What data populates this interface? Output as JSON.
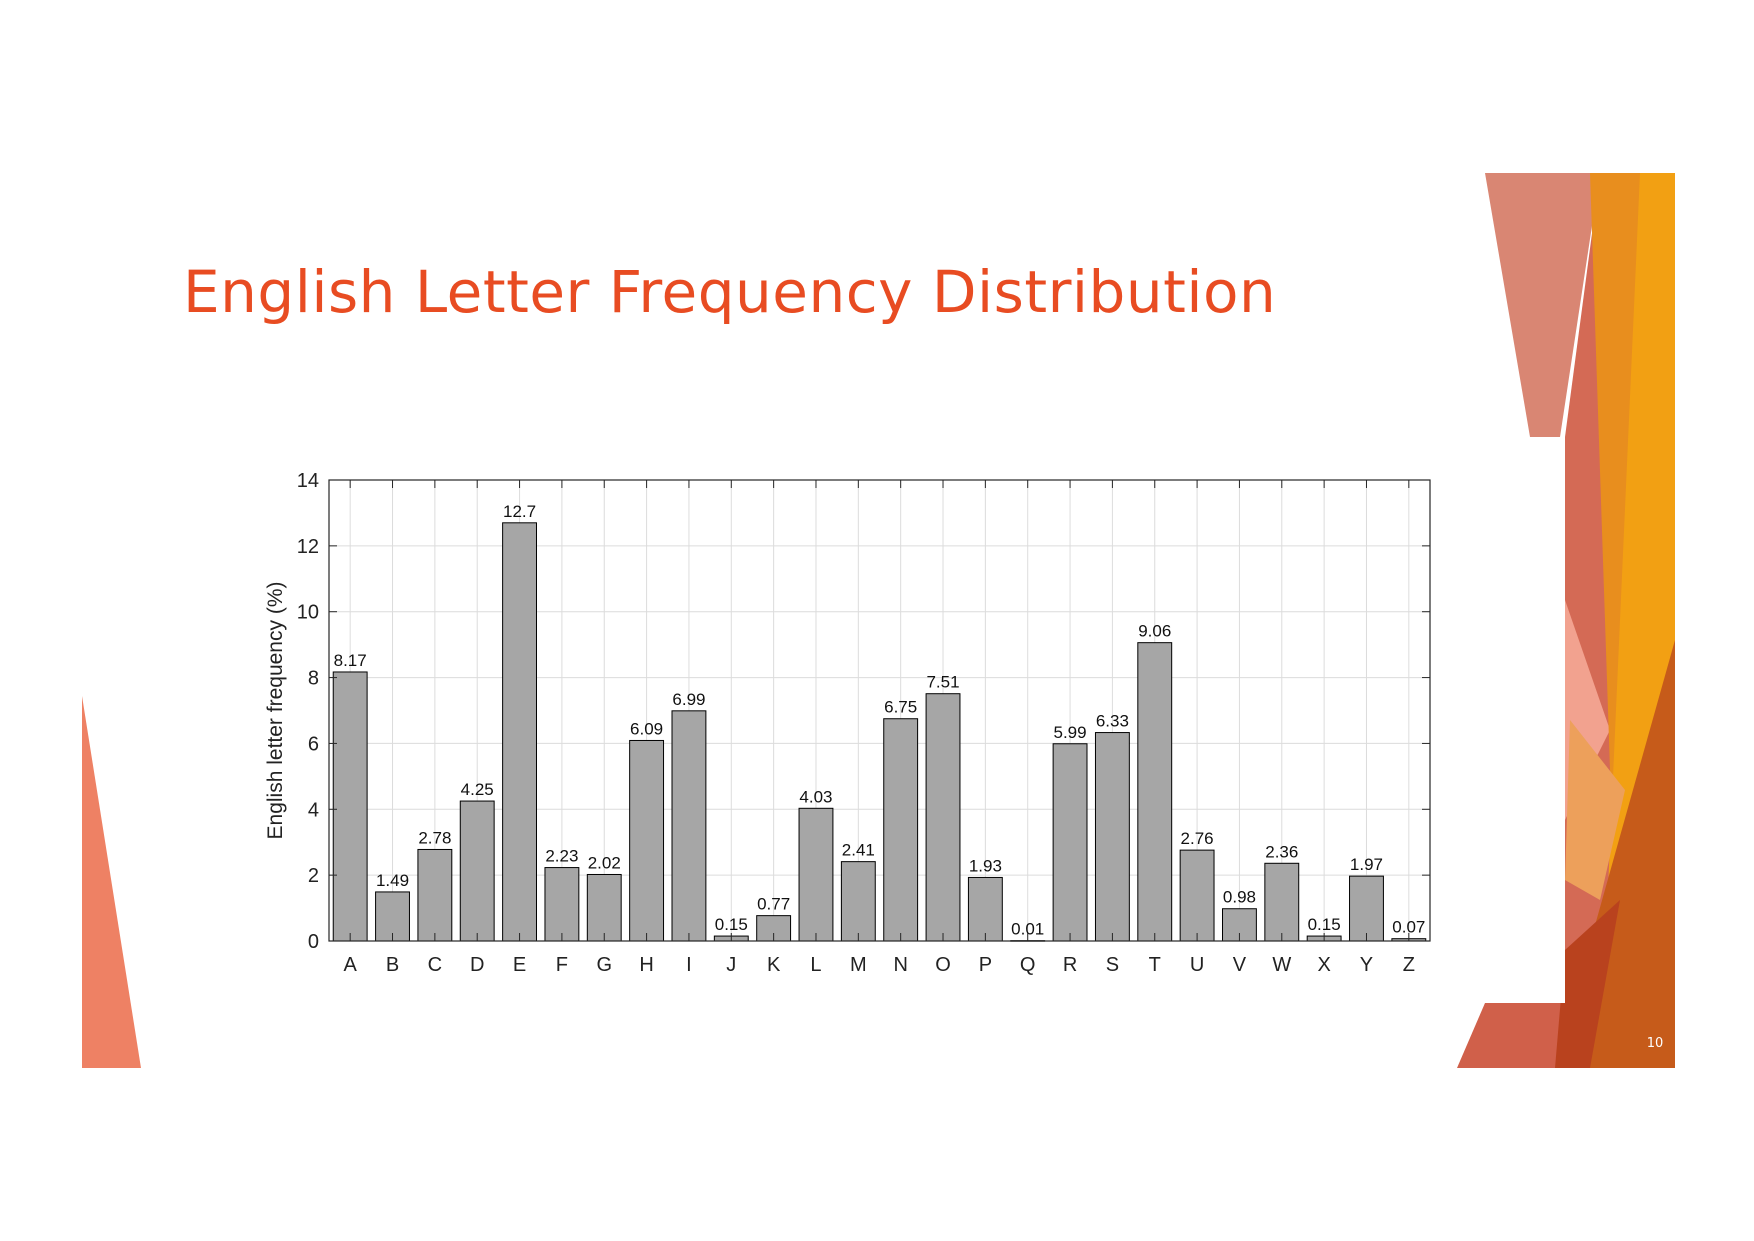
{
  "slide": {
    "title": "English Letter Frequency Distribution",
    "page_number": "10",
    "accent_color": "#E84C22"
  },
  "chart_data": {
    "type": "bar",
    "title": "",
    "xlabel": "",
    "ylabel": "English letter frequency (%)",
    "categories": [
      "A",
      "B",
      "C",
      "D",
      "E",
      "F",
      "G",
      "H",
      "I",
      "J",
      "K",
      "L",
      "M",
      "N",
      "O",
      "P",
      "Q",
      "R",
      "S",
      "T",
      "U",
      "V",
      "W",
      "X",
      "Y",
      "Z"
    ],
    "values": [
      8.17,
      1.49,
      2.78,
      4.25,
      12.7,
      2.23,
      2.02,
      6.09,
      6.99,
      0.15,
      0.77,
      4.03,
      2.41,
      6.75,
      7.51,
      1.93,
      0.01,
      5.99,
      6.33,
      9.06,
      2.76,
      0.98,
      2.36,
      0.15,
      1.97,
      0.07
    ],
    "value_labels": [
      "8.17",
      "1.49",
      "2.78",
      "4.25",
      "12.7",
      "2.23",
      "2.02",
      "6.09",
      "6.99",
      "0.15",
      "0.77",
      "4.03",
      "2.41",
      "6.75",
      "7.51",
      "1.93",
      "0.01",
      "5.99",
      "6.33",
      "9.06",
      "2.76",
      "0.98",
      "2.36",
      "0.15",
      "1.97",
      "0.07"
    ],
    "ylim": [
      0,
      14
    ],
    "yticks": [
      0,
      2,
      4,
      6,
      8,
      10,
      12,
      14
    ],
    "grid": true,
    "bar_color": "#A6A6A6",
    "edge_color": "#000000"
  }
}
